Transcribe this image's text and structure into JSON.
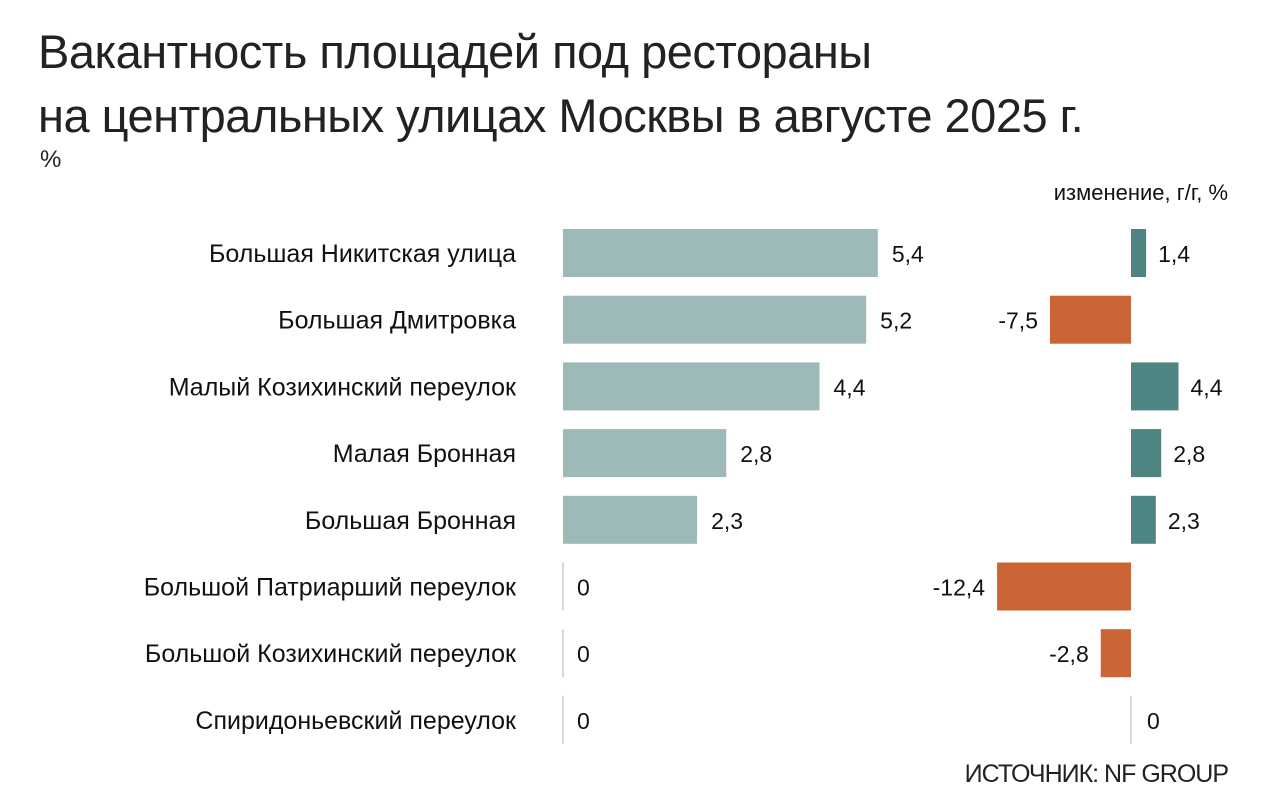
{
  "chart_data": {
    "type": "bar",
    "orientation": "horizontal",
    "title": "Вакантность площадей под рестораны на центральных улицах Москвы в августе 2025 г.",
    "title_lines": [
      "Вакантность площадей под рестораны",
      "на центральных улицах Москвы в августе 2025 г."
    ],
    "unit": "%",
    "change_label": "изменение, г/г, %",
    "source": "ИСТОЧНИК: NF GROUP",
    "categories": [
      "Большая Никитская улица",
      "Большая Дмитровка",
      "Малый Козихинский переулок",
      "Малая Бронная",
      "Большая Бронная",
      "Большой Патриарший переулок",
      "Большой Козихинский переулок",
      "Спиридоньевский переулок"
    ],
    "series": [
      {
        "values": [
          5.4,
          5.2,
          4.4,
          2.8,
          2.3,
          0,
          0,
          0
        ],
        "labels": [
          "5,4",
          "5,2",
          "4,4",
          "2,8",
          "2,3",
          "0",
          "0",
          "0"
        ]
      },
      {
        "name": "изменение, г/г, %",
        "values": [
          1.4,
          -7.5,
          4.4,
          2.8,
          2.3,
          -12.4,
          -2.8,
          0
        ],
        "labels": [
          "1,4",
          "-7,5",
          "4,4",
          "2,8",
          "2,3",
          "-12,4",
          "-2,8",
          "0"
        ]
      }
    ],
    "colors": {
      "vacancy": "#9db9b8",
      "positive": "#4e8482",
      "negative": "#cc6535",
      "axis": "#cccccc"
    },
    "grid": false
  }
}
